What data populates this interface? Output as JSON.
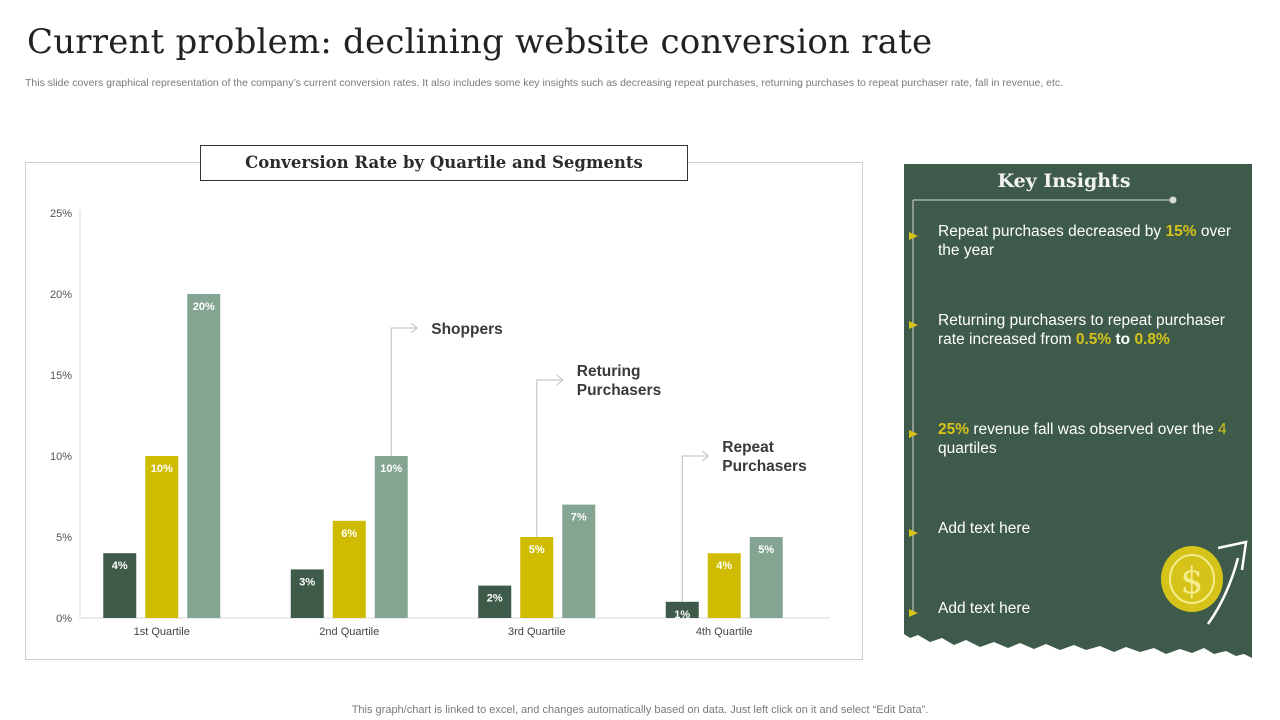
{
  "title": "Current problem: declining website conversion rate",
  "subtitle": "This slide covers graphical representation of the company’s current conversion rates. It also includes some key insights such as decreasing repeat purchases, returning purchases to repeat purchaser rate, fall in revenue, etc.",
  "chart_data": {
    "type": "bar",
    "title": "Conversion Rate by Quartile and Segments",
    "categories": [
      "1st Quartile",
      "2nd Quartile",
      "3rd Quartile",
      "4th Quartile"
    ],
    "series": [
      {
        "name": "Repeat Purchasers",
        "values": [
          4,
          3,
          2,
          1
        ],
        "labels": [
          "4%",
          "3%",
          "2%",
          "1%"
        ],
        "color": "#3e5a48"
      },
      {
        "name": "Returing Purchasers",
        "values": [
          10,
          6,
          5,
          4
        ],
        "labels": [
          "10%",
          "6%",
          "5%",
          "4%"
        ],
        "color": "#cfbc00"
      },
      {
        "name": "Shoppers",
        "values": [
          20,
          10,
          7,
          5
        ],
        "labels": [
          "20%",
          "10%",
          "7%",
          "5%"
        ],
        "color": "#84a592"
      }
    ],
    "ylim": [
      0,
      25
    ],
    "yticks": [
      "0%",
      "5%",
      "10%",
      "15%",
      "20%",
      "25%"
    ],
    "grid": false,
    "annotations": [
      "Shoppers",
      "Returing Purchasers",
      "Repeat Purchasers"
    ]
  },
  "insights": {
    "title": "Key Insights",
    "items": [
      {
        "parts": [
          {
            "t": "Repeat purchases decreased by "
          },
          {
            "t": "15%",
            "hl": true
          },
          {
            "t": " over the year"
          }
        ]
      },
      {
        "parts": [
          {
            "t": "Returning purchasers to repeat purchaser rate increased from "
          },
          {
            "t": "0.5%",
            "hl": true
          },
          {
            "t": " to ",
            "bold": true
          },
          {
            "t": "0.8%",
            "hl": true
          }
        ]
      },
      {
        "parts": [
          {
            "t": "25%",
            "hl": true
          },
          {
            "t": " revenue fall was observed over the "
          },
          {
            "t": "4",
            "hl2": true
          },
          {
            "t": " quartiles"
          }
        ]
      },
      {
        "parts": [
          {
            "t": "Add text here"
          }
        ]
      },
      {
        "parts": [
          {
            "t": "Add text here"
          }
        ]
      }
    ]
  },
  "colors": {
    "panel": "#3e5a4a",
    "accent": "#d6c31a"
  },
  "icons": [
    "dollar-coin-icon",
    "growth-arrow-icon"
  ],
  "footer": "This graph/chart is linked to excel,  and changes automatically based on data. Just left click on it and select “Edit Data”."
}
